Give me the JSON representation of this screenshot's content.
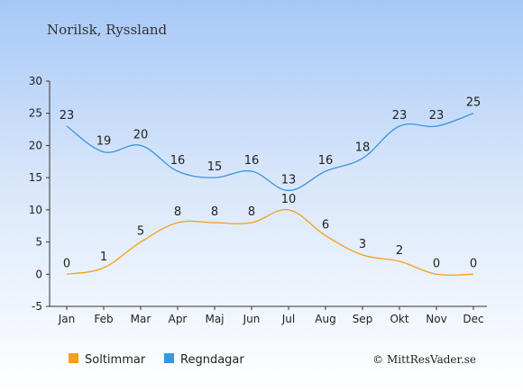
{
  "chart_data": {
    "type": "line",
    "title": "Norilsk, Ryssland",
    "categories": [
      "Jan",
      "Feb",
      "Mar",
      "Apr",
      "Maj",
      "Jun",
      "Jul",
      "Aug",
      "Sep",
      "Okt",
      "Nov",
      "Dec"
    ],
    "series": [
      {
        "name": "Soltimmar",
        "color": "#f5a01a",
        "values": [
          0,
          1,
          5,
          8,
          8,
          8,
          10,
          6,
          3,
          2,
          0,
          0
        ]
      },
      {
        "name": "Regndagar",
        "color": "#3a95e0",
        "values": [
          23,
          19,
          20,
          16,
          15,
          16,
          13,
          16,
          18,
          23,
          23,
          25
        ]
      }
    ],
    "ylim": [
      -5,
      30
    ],
    "yticks": [
      -5,
      0,
      5,
      10,
      15,
      20,
      25,
      30
    ],
    "grid": false,
    "legend": "bottom-left"
  },
  "credit": "© MittResVader.se"
}
